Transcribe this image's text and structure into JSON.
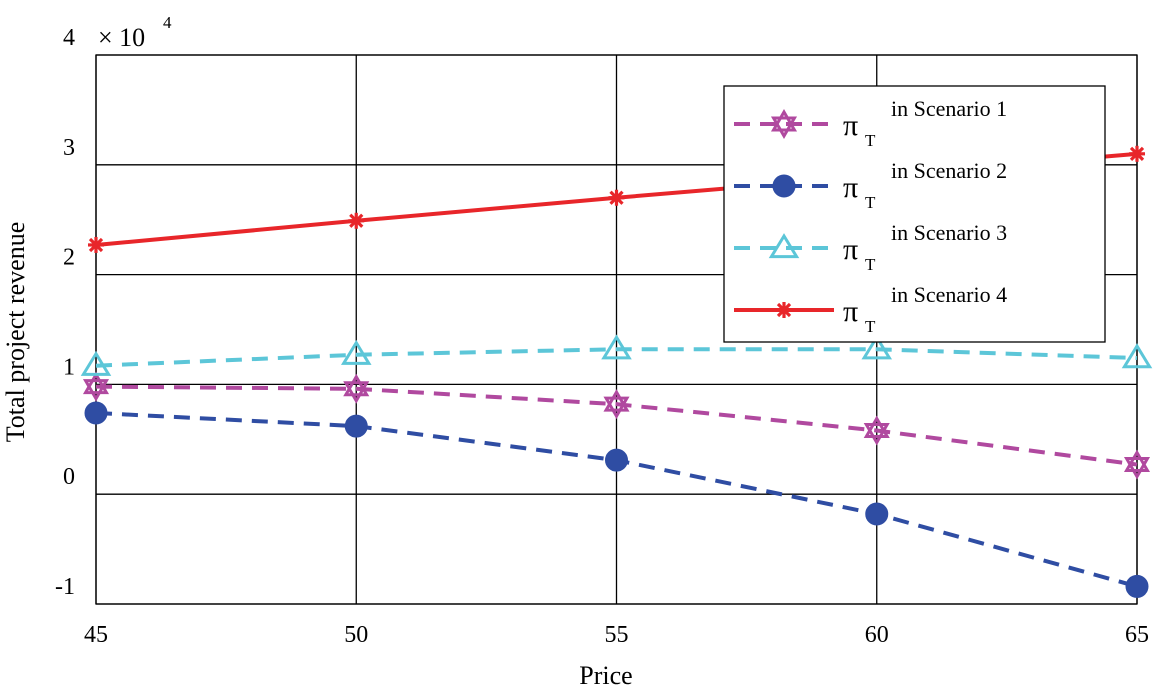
{
  "chart_data": {
    "type": "line",
    "xlabel": "Price",
    "ylabel": "Total project revenue",
    "y_multiplier": "× 10",
    "y_multiplier_exp": "4",
    "x": [
      45,
      50,
      55,
      60,
      65
    ],
    "xlim": [
      45,
      65
    ],
    "ylim": [
      -1,
      4
    ],
    "x_ticks": [
      "45",
      "50",
      "55",
      "60",
      "65"
    ],
    "y_ticks": [
      "-1",
      "0",
      "1",
      "2",
      "3",
      "4"
    ],
    "grid": true,
    "legend_position": "top-right",
    "series": [
      {
        "name": "π_T in Scenario 1",
        "symbol": "π",
        "sub": "T",
        "suffix": "in Scenario 1",
        "values": [
          0.98,
          0.96,
          0.82,
          0.58,
          0.27
        ],
        "color": "#B0499F",
        "dash": true,
        "marker": "hexagram"
      },
      {
        "name": "π_T in Scenario 2",
        "symbol": "π",
        "sub": "T",
        "suffix": "in Scenario 2",
        "values": [
          0.74,
          0.62,
          0.31,
          -0.18,
          -0.84
        ],
        "color": "#2F4DA3",
        "dash": true,
        "marker": "circle"
      },
      {
        "name": "π_T in Scenario 3",
        "symbol": "π",
        "sub": "T",
        "suffix": "in Scenario 3",
        "values": [
          1.17,
          1.27,
          1.32,
          1.32,
          1.24
        ],
        "color": "#5CC6D8",
        "dash": true,
        "marker": "triangle"
      },
      {
        "name": "π_T in Scenario 4",
        "symbol": "π",
        "sub": "T",
        "suffix": "in Scenario 4",
        "values": [
          2.27,
          2.49,
          2.7,
          2.9,
          3.1
        ],
        "color": "#E8262A",
        "dash": false,
        "marker": "asterisk"
      }
    ]
  }
}
